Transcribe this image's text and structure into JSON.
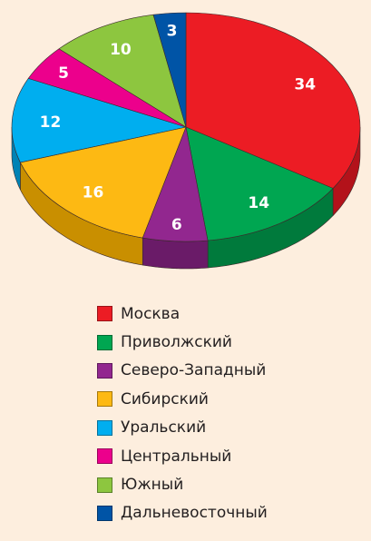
{
  "chart_data": {
    "type": "pie",
    "title": "",
    "legend_position": "bottom",
    "slices": [
      {
        "label": "Москва",
        "value": 34,
        "color": "#ec1c24",
        "side_color": "#b3121a"
      },
      {
        "label": "Приволжский",
        "value": 14,
        "color": "#00a651",
        "side_color": "#007a3c"
      },
      {
        "label": "Северо-Западный",
        "value": 6,
        "color": "#92278f",
        "side_color": "#6a1b68"
      },
      {
        "label": "Сибирский",
        "value": 16,
        "color": "#fdb913",
        "side_color": "#c98f00"
      },
      {
        "label": "Уральский",
        "value": 12,
        "color": "#00aeef",
        "side_color": "#0083b5"
      },
      {
        "label": "Центральный",
        "value": 5,
        "color": "#ec008c",
        "side_color": "#b00068"
      },
      {
        "label": "Южный",
        "value": 10,
        "color": "#8dc63f",
        "side_color": "#6a982c"
      },
      {
        "label": "Дальневосточный",
        "value": 3,
        "color": "#0054a6",
        "side_color": "#003d7a"
      }
    ]
  },
  "background_color": "#fdeede"
}
